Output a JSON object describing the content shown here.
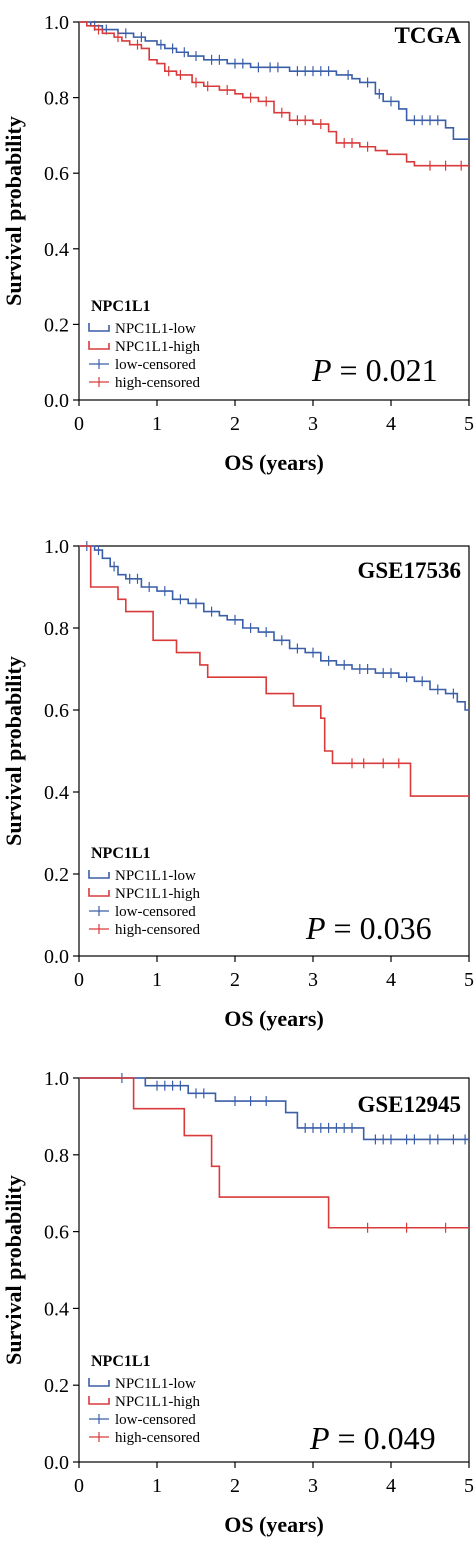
{
  "figure": {
    "panels": [
      {
        "title": "TCGA",
        "p_value_label": "P",
        "p_value_text": "= 0.021",
        "xlabel": "OS (years)",
        "ylabel": "Survival probability",
        "legend_title": "NPC1L1",
        "legend_entries": [
          "NPC1L1-low",
          "NPC1L1-high",
          "low-censored",
          "high-censored"
        ]
      },
      {
        "title": "GSE17536",
        "p_value_label": "P",
        "p_value_text": "= 0.036",
        "xlabel": "OS (years)",
        "ylabel": "Survival probability",
        "legend_title": "NPC1L1",
        "legend_entries": [
          "NPC1L1-low",
          "NPC1L1-high",
          "low-censored",
          "high-censored"
        ]
      },
      {
        "title": "GSE12945",
        "p_value_label": "P",
        "p_value_text": "= 0.049",
        "xlabel": "OS (years)",
        "ylabel": "Survival probability",
        "legend_title": "NPC1L1",
        "legend_entries": [
          "NPC1L1-low",
          "NPC1L1-high",
          "low-censored",
          "high-censored"
        ]
      }
    ]
  },
  "chart_data": [
    {
      "type": "line",
      "subtype": "kaplan-meier",
      "title": "TCGA",
      "xlabel": "OS (years)",
      "ylabel": "Survival probability",
      "xlim": [
        0,
        5
      ],
      "ylim": [
        0,
        1
      ],
      "xticks": [
        0,
        1,
        2,
        3,
        4,
        5
      ],
      "yticks": [
        "0.0",
        "0.2",
        "0.4",
        "0.6",
        "0.8",
        "1.0"
      ],
      "grid": false,
      "legend_position": "bottom-left",
      "annotation": "P = 0.021",
      "colors": {
        "low": "#3a5fa8",
        "high": "#d93a3a"
      },
      "series": [
        {
          "name": "NPC1L1-low",
          "step": [
            [
              0,
              1.0
            ],
            [
              0.15,
              0.99
            ],
            [
              0.3,
              0.98
            ],
            [
              0.5,
              0.97
            ],
            [
              0.7,
              0.96
            ],
            [
              0.85,
              0.95
            ],
            [
              1.0,
              0.94
            ],
            [
              1.1,
              0.93
            ],
            [
              1.25,
              0.92
            ],
            [
              1.4,
              0.91
            ],
            [
              1.6,
              0.9
            ],
            [
              1.9,
              0.89
            ],
            [
              2.2,
              0.88
            ],
            [
              2.7,
              0.87
            ],
            [
              3.3,
              0.86
            ],
            [
              3.5,
              0.85
            ],
            [
              3.6,
              0.84
            ],
            [
              3.8,
              0.81
            ],
            [
              3.9,
              0.79
            ],
            [
              4.1,
              0.77
            ],
            [
              4.2,
              0.74
            ],
            [
              4.7,
              0.72
            ],
            [
              4.8,
              0.69
            ],
            [
              5.0,
              0.69
            ]
          ],
          "censored": [
            0.2,
            0.35,
            0.6,
            0.8,
            1.05,
            1.2,
            1.35,
            1.5,
            1.7,
            1.8,
            2.0,
            2.1,
            2.3,
            2.45,
            2.55,
            2.8,
            2.9,
            3.0,
            3.1,
            3.2,
            3.45,
            3.7,
            3.85,
            4.0,
            4.3,
            4.4,
            4.5,
            4.6
          ]
        },
        {
          "name": "NPC1L1-high",
          "step": [
            [
              0,
              1.0
            ],
            [
              0.1,
              0.99
            ],
            [
              0.2,
              0.98
            ],
            [
              0.3,
              0.97
            ],
            [
              0.45,
              0.96
            ],
            [
              0.55,
              0.95
            ],
            [
              0.65,
              0.94
            ],
            [
              0.8,
              0.93
            ],
            [
              0.9,
              0.9
            ],
            [
              1.0,
              0.89
            ],
            [
              1.1,
              0.87
            ],
            [
              1.25,
              0.86
            ],
            [
              1.45,
              0.84
            ],
            [
              1.6,
              0.83
            ],
            [
              1.8,
              0.82
            ],
            [
              2.0,
              0.81
            ],
            [
              2.1,
              0.8
            ],
            [
              2.3,
              0.79
            ],
            [
              2.5,
              0.76
            ],
            [
              2.7,
              0.74
            ],
            [
              3.0,
              0.73
            ],
            [
              3.2,
              0.71
            ],
            [
              3.3,
              0.68
            ],
            [
              3.6,
              0.67
            ],
            [
              3.8,
              0.66
            ],
            [
              3.95,
              0.65
            ],
            [
              4.2,
              0.63
            ],
            [
              4.3,
              0.62
            ],
            [
              5.0,
              0.62
            ]
          ],
          "censored": [
            0.25,
            0.5,
            0.75,
            1.15,
            1.3,
            1.5,
            1.65,
            1.9,
            2.2,
            2.4,
            2.6,
            2.8,
            2.9,
            3.1,
            3.4,
            3.5,
            3.7,
            4.5,
            4.7,
            4.9
          ]
        }
      ]
    },
    {
      "type": "line",
      "subtype": "kaplan-meier",
      "title": "GSE17536",
      "xlabel": "OS (years)",
      "ylabel": "Survival probability",
      "xlim": [
        0,
        5
      ],
      "ylim": [
        0,
        1
      ],
      "xticks": [
        0,
        1,
        2,
        3,
        4,
        5
      ],
      "yticks": [
        "0.0",
        "0.2",
        "0.4",
        "0.6",
        "0.8",
        "1.0"
      ],
      "grid": false,
      "legend_position": "bottom-left",
      "annotation": "P = 0.036",
      "colors": {
        "low": "#3a5fa8",
        "high": "#d93a3a"
      },
      "series": [
        {
          "name": "NPC1L1-low",
          "step": [
            [
              0,
              1.0
            ],
            [
              0.2,
              0.99
            ],
            [
              0.3,
              0.97
            ],
            [
              0.4,
              0.95
            ],
            [
              0.5,
              0.93
            ],
            [
              0.6,
              0.92
            ],
            [
              0.8,
              0.9
            ],
            [
              1.0,
              0.89
            ],
            [
              1.2,
              0.87
            ],
            [
              1.4,
              0.86
            ],
            [
              1.6,
              0.84
            ],
            [
              1.8,
              0.83
            ],
            [
              1.9,
              0.82
            ],
            [
              2.1,
              0.8
            ],
            [
              2.3,
              0.79
            ],
            [
              2.5,
              0.77
            ],
            [
              2.7,
              0.75
            ],
            [
              2.9,
              0.74
            ],
            [
              3.1,
              0.72
            ],
            [
              3.3,
              0.71
            ],
            [
              3.5,
              0.7
            ],
            [
              3.8,
              0.69
            ],
            [
              4.1,
              0.68
            ],
            [
              4.3,
              0.67
            ],
            [
              4.5,
              0.65
            ],
            [
              4.7,
              0.64
            ],
            [
              4.85,
              0.62
            ],
            [
              4.95,
              0.6
            ],
            [
              5.0,
              0.6
            ]
          ],
          "censored": [
            0.1,
            0.25,
            0.45,
            0.65,
            0.75,
            0.9,
            1.1,
            1.3,
            1.5,
            1.7,
            2.0,
            2.2,
            2.4,
            2.6,
            2.8,
            3.0,
            3.2,
            3.4,
            3.6,
            3.7,
            3.9,
            4.0,
            4.2,
            4.4,
            4.6,
            4.8
          ]
        },
        {
          "name": "NPC1L1-high",
          "step": [
            [
              0,
              1.0
            ],
            [
              0.15,
              0.9
            ],
            [
              0.5,
              0.87
            ],
            [
              0.6,
              0.84
            ],
            [
              0.95,
              0.77
            ],
            [
              1.25,
              0.74
            ],
            [
              1.55,
              0.71
            ],
            [
              1.65,
              0.68
            ],
            [
              2.4,
              0.64
            ],
            [
              2.75,
              0.61
            ],
            [
              3.1,
              0.58
            ],
            [
              3.15,
              0.5
            ],
            [
              3.25,
              0.47
            ],
            [
              4.2,
              0.47
            ],
            [
              4.25,
              0.39
            ],
            [
              5.0,
              0.39
            ]
          ],
          "censored": [
            3.5,
            3.65,
            3.9,
            4.1
          ]
        }
      ]
    },
    {
      "type": "line",
      "subtype": "kaplan-meier",
      "title": "GSE12945",
      "xlabel": "OS (years)",
      "ylabel": "Survival probability",
      "xlim": [
        0,
        5
      ],
      "ylim": [
        0,
        1
      ],
      "xticks": [
        0,
        1,
        2,
        3,
        4,
        5
      ],
      "yticks": [
        "0.0",
        "0.2",
        "0.4",
        "0.6",
        "0.8",
        "1.0"
      ],
      "grid": false,
      "legend_position": "bottom-left",
      "annotation": "P = 0.049",
      "colors": {
        "low": "#3a5fa8",
        "high": "#d93a3a"
      },
      "series": [
        {
          "name": "NPC1L1-low",
          "step": [
            [
              0,
              1.0
            ],
            [
              0.85,
              0.98
            ],
            [
              1.4,
              0.96
            ],
            [
              1.75,
              0.94
            ],
            [
              2.65,
              0.91
            ],
            [
              2.8,
              0.87
            ],
            [
              3.65,
              0.84
            ],
            [
              5.0,
              0.84
            ]
          ],
          "censored": [
            0.55,
            1.0,
            1.1,
            1.2,
            1.3,
            1.5,
            1.6,
            2.0,
            2.2,
            2.4,
            2.9,
            3.0,
            3.1,
            3.2,
            3.3,
            3.4,
            3.5,
            3.8,
            3.9,
            4.0,
            4.2,
            4.3,
            4.5,
            4.6,
            4.8,
            4.95
          ]
        },
        {
          "name": "NPC1L1-high",
          "step": [
            [
              0,
              1.0
            ],
            [
              0.7,
              0.92
            ],
            [
              1.35,
              0.85
            ],
            [
              1.7,
              0.77
            ],
            [
              1.8,
              0.69
            ],
            [
              3.2,
              0.61
            ],
            [
              5.0,
              0.61
            ]
          ],
          "censored": [
            3.7,
            4.2,
            4.7
          ]
        }
      ]
    }
  ]
}
